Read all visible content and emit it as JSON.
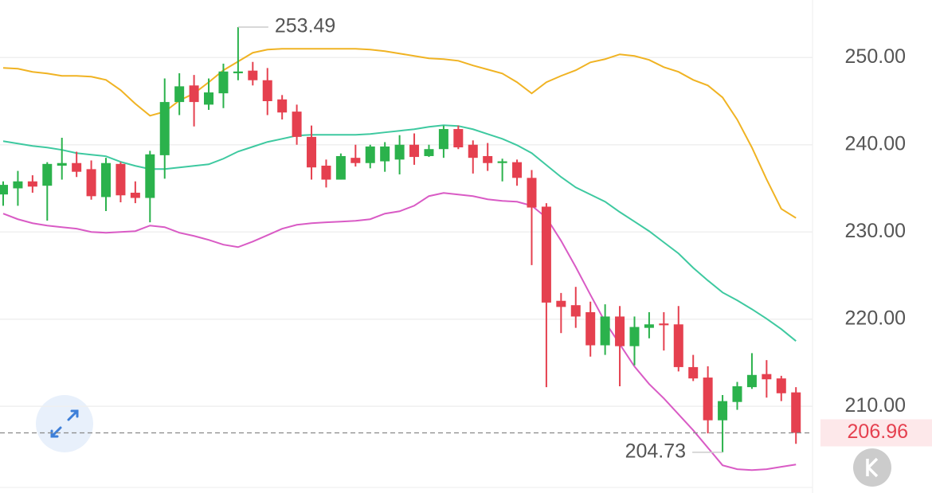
{
  "chart_data": {
    "type": "candlestick",
    "ylim": [
      200.7,
      256.6
    ],
    "yticks": [
      {
        "value": 250,
        "label": "250.00"
      },
      {
        "value": 240,
        "label": "240.00"
      },
      {
        "value": 230,
        "label": "230.00"
      },
      {
        "value": 220,
        "label": "220.00"
      },
      {
        "value": 210,
        "label": "210.00"
      }
    ],
    "grid": true,
    "up_color": "#2bb24c",
    "down_color": "#e5404f",
    "open": [
      234.3,
      235.0,
      235.8,
      235.3,
      237.6,
      237.9,
      237.2,
      234.0,
      237.8,
      234.5,
      233.9,
      238.8,
      244.9,
      246.8,
      244.6,
      245.9,
      248.2,
      248.5,
      247.4,
      245.2,
      243.8,
      240.9,
      237.6,
      236.0,
      238.5,
      237.9,
      238.1,
      238.3,
      240.0,
      238.7,
      239.5,
      241.8,
      240.0,
      238.7,
      237.9,
      238.0,
      236.2,
      232.9,
      222.1,
      221.6,
      220.8,
      217.0,
      220.3,
      216.9,
      219.0,
      219.5,
      219.4,
      214.5,
      213.3,
      208.4,
      210.5,
      212.2,
      213.7,
      213.2,
      211.6
    ],
    "high": [
      235.8,
      237.0,
      236.5,
      238.0,
      240.8,
      239.2,
      238.2,
      238.5,
      238.0,
      235.8,
      239.3,
      247.6,
      248.2,
      248.0,
      247.6,
      249.3,
      253.49,
      249.5,
      248.8,
      245.7,
      244.6,
      242.2,
      238.3,
      239.0,
      240.0,
      240.0,
      240.3,
      241.1,
      241.3,
      240.0,
      242.2,
      242.2,
      240.5,
      240.2,
      238.4,
      238.3,
      237.1,
      233.3,
      223.0,
      223.7,
      222.0,
      221.7,
      221.5,
      220.3,
      220.8,
      220.8,
      221.5,
      215.9,
      214.6,
      211.3,
      212.8,
      216.1,
      215.3,
      213.5,
      212.2
    ],
    "low": [
      233.0,
      233.0,
      234.5,
      231.3,
      236.0,
      236.3,
      233.7,
      232.4,
      233.4,
      233.3,
      231.1,
      236.1,
      243.4,
      242.1,
      244.0,
      244.2,
      247.4,
      246.8,
      243.4,
      242.9,
      240.0,
      236.0,
      235.1,
      236.0,
      237.5,
      237.3,
      236.9,
      236.6,
      237.7,
      238.6,
      238.5,
      239.5,
      236.7,
      237.0,
      235.8,
      235.3,
      226.2,
      212.2,
      218.4,
      219.0,
      215.7,
      215.9,
      212.3,
      214.7,
      217.8,
      216.4,
      214.0,
      212.9,
      206.9,
      204.73,
      209.6,
      212.0,
      211.0,
      210.6,
      205.7
    ],
    "close": [
      235.4,
      235.8,
      235.2,
      237.8,
      237.9,
      236.9,
      234.1,
      237.9,
      234.2,
      233.9,
      238.9,
      244.9,
      246.7,
      244.9,
      246.0,
      248.4,
      248.4,
      247.4,
      245.0,
      243.7,
      240.9,
      237.4,
      236.0,
      238.7,
      237.9,
      239.8,
      239.8,
      240.0,
      238.6,
      239.5,
      241.8,
      239.7,
      238.5,
      237.9,
      238.1,
      236.2,
      232.8,
      221.9,
      221.4,
      220.3,
      217.0,
      220.3,
      216.9,
      219.1,
      219.4,
      219.3,
      214.5,
      213.2,
      208.4,
      210.6,
      212.3,
      213.6,
      213.1,
      211.5,
      206.96
    ],
    "lines": [
      {
        "color": "#f0b323",
        "values": [
          248.81,
          248.72,
          248.36,
          248.17,
          247.9,
          247.9,
          247.81,
          247.44,
          246.26,
          244.7,
          243.33,
          243.79,
          245.07,
          245.89,
          247.17,
          248.54,
          249.54,
          250.55,
          250.91,
          251.0,
          251.0,
          251.0,
          251.0,
          251.0,
          251.0,
          250.91,
          250.73,
          250.46,
          250.18,
          249.91,
          249.82,
          249.63,
          249.09,
          248.63,
          248.17,
          247.17,
          245.89,
          247.17,
          247.9,
          248.54,
          249.45,
          249.82,
          250.37,
          250.18,
          249.73,
          248.9,
          248.36,
          247.44,
          246.8,
          245.43,
          242.88,
          239.68,
          236.03,
          232.65,
          231.6
        ]
      },
      {
        "color": "#3ec9a0",
        "values": [
          240.41,
          240.14,
          239.86,
          239.68,
          239.41,
          239.04,
          238.86,
          238.68,
          238.04,
          237.58,
          237.21,
          237.21,
          237.4,
          237.58,
          237.76,
          238.4,
          239.22,
          239.77,
          240.32,
          240.68,
          241.05,
          241.14,
          241.14,
          241.14,
          241.14,
          241.23,
          241.42,
          241.6,
          241.78,
          242.05,
          242.24,
          242.15,
          241.78,
          241.23,
          240.68,
          239.95,
          239.04,
          237.67,
          236.3,
          235.11,
          234.29,
          233.47,
          232.28,
          231.19,
          230.09,
          228.81,
          227.53,
          225.89,
          224.43,
          223.06,
          222.15,
          221.14,
          220.05,
          218.86,
          217.49
        ]
      },
      {
        "color": "#d95bc5",
        "values": [
          232.1,
          231.46,
          231.0,
          230.73,
          230.55,
          230.37,
          230.0,
          229.91,
          230.0,
          230.09,
          230.73,
          230.55,
          229.91,
          229.54,
          229.09,
          228.54,
          228.26,
          228.9,
          229.63,
          230.37,
          230.82,
          231.0,
          231.1,
          231.19,
          231.28,
          231.46,
          232.1,
          232.37,
          233.01,
          234.11,
          234.47,
          234.29,
          234.11,
          233.74,
          233.56,
          233.47,
          233.01,
          231.64,
          228.99,
          225.98,
          222.79,
          219.68,
          217.12,
          214.57,
          212.56,
          210.91,
          209.09,
          207.26,
          205.25,
          203.24,
          202.79,
          202.69,
          202.79,
          203.06,
          203.33
        ]
      }
    ],
    "high_annotation": {
      "value": 253.49,
      "label": "253.49"
    },
    "low_annotation": {
      "value": 204.73,
      "label": "204.73"
    },
    "current_price": {
      "value": 206.96,
      "label": "206.96"
    }
  }
}
